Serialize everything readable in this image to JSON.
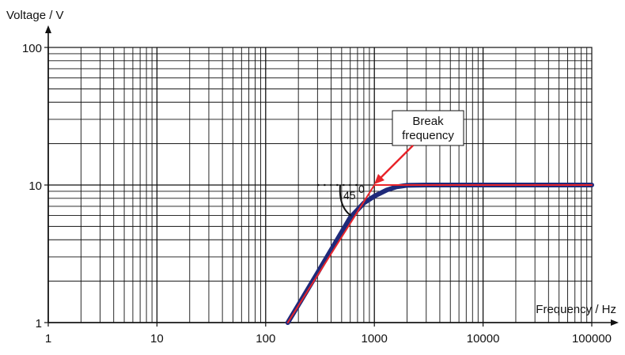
{
  "chart_data": {
    "type": "line",
    "xscale": "log",
    "yscale": "log",
    "xlim": [
      1,
      100000
    ],
    "ylim": [
      1,
      100
    ],
    "xlabel": "Frequency / Hz",
    "ylabel": "Voltage / V",
    "x_tick_labels": [
      "1",
      "10",
      "100",
      "1000",
      "10000",
      "100000"
    ],
    "y_tick_labels": [
      "1",
      "10",
      "100"
    ],
    "grid": true,
    "series": [
      {
        "color": "#1f2a7a",
        "x": [
          160,
          300,
          600,
          800,
          1000,
          1300,
          1600,
          2000,
          3000,
          10000,
          100000
        ],
        "y": [
          1.0,
          2.3,
          5.8,
          7.4,
          8.3,
          9.2,
          9.7,
          9.95,
          10,
          10,
          10
        ]
      },
      {
        "color": "#e8242a",
        "x": [
          160,
          1000,
          100000
        ],
        "y": [
          1.0,
          10,
          10
        ]
      }
    ],
    "annotations": [
      {
        "text_lines": [
          "Break",
          "frequency"
        ],
        "points_to": [
          1000,
          10
        ]
      },
      {
        "text": "45",
        "superscript": "0",
        "at": [
          500,
          8
        ]
      }
    ]
  }
}
